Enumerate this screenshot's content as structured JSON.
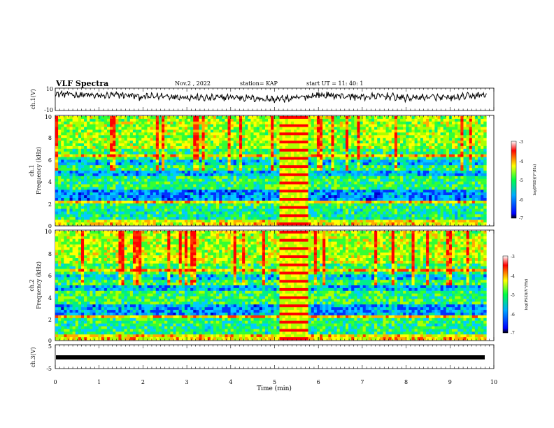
{
  "header": {
    "title": "VLF Spectra",
    "date": "Nov.2 , 2022",
    "station": "station= KAP",
    "start": "start UT = 11: 40: 1"
  },
  "x_axis": {
    "label": "Time (min)",
    "ticks": [
      "0",
      "1",
      "2",
      "3",
      "4",
      "5",
      "6",
      "7",
      "8",
      "9",
      "10"
    ],
    "range": [
      0,
      10
    ]
  },
  "panels": {
    "ch1v": {
      "ylabel": "ch.1(V)",
      "ticks": [
        "10",
        "-10"
      ]
    },
    "spec1": {
      "ylabel_top": "ch.1",
      "ylabel": "Frequency (kHz)",
      "ticks": [
        "0",
        "2",
        "4",
        "6",
        "8",
        "10"
      ]
    },
    "spec2": {
      "ylabel_top": "ch.2",
      "ylabel": "Frequency (kHz)",
      "ticks": [
        "0",
        "2",
        "4",
        "6",
        "8",
        "10"
      ]
    },
    "ch3v": {
      "ylabel": "ch.3(V)",
      "ticks": [
        "5",
        "-5"
      ]
    }
  },
  "colorbar": {
    "label": "log(PSD)(V²/Hz)",
    "ticks": [
      "-3",
      "-4",
      "-5",
      "-6",
      "-7"
    ],
    "range": [
      -7,
      -3
    ],
    "colors": [
      "#000000",
      "#0000ff",
      "#00aaff",
      "#00ff44",
      "#ffff00",
      "#ff0000",
      "#ffffff"
    ]
  },
  "chart_data": [
    {
      "type": "line",
      "name": "ch.1 waveform",
      "ylabel": "ch.1(V)",
      "ylim": [
        -10,
        10
      ],
      "xlim": [
        0,
        9.83
      ],
      "x": [
        0,
        0.5,
        1,
        1.5,
        2,
        2.5,
        3,
        3.5,
        4,
        4.5,
        5,
        5.5,
        6,
        6.5,
        7,
        7.5,
        8,
        8.5,
        9,
        9.5,
        9.8
      ],
      "values": [
        5,
        4,
        3,
        4,
        2,
        3,
        2,
        1,
        2,
        1,
        0,
        1,
        4,
        3,
        2,
        3,
        1,
        2,
        1,
        3,
        4
      ]
    },
    {
      "type": "heatmap",
      "name": "ch.1 spectrogram",
      "ylabel": "Frequency (kHz)",
      "ylim": [
        0,
        10
      ],
      "xlim": [
        0,
        9.83
      ],
      "clim": [
        -7,
        -3
      ]
    },
    {
      "type": "heatmap",
      "name": "ch.2 spectrogram",
      "ylabel": "Frequency (kHz)",
      "ylim": [
        0,
        10
      ],
      "xlim": [
        0,
        9.83
      ],
      "clim": [
        -7,
        -3
      ]
    },
    {
      "type": "line",
      "name": "ch.3 waveform",
      "ylabel": "ch.3(V)",
      "ylim": [
        -5,
        5
      ],
      "xlim": [
        0,
        9.83
      ],
      "x": [
        0,
        9.83
      ],
      "values": [
        0,
        0
      ]
    }
  ]
}
